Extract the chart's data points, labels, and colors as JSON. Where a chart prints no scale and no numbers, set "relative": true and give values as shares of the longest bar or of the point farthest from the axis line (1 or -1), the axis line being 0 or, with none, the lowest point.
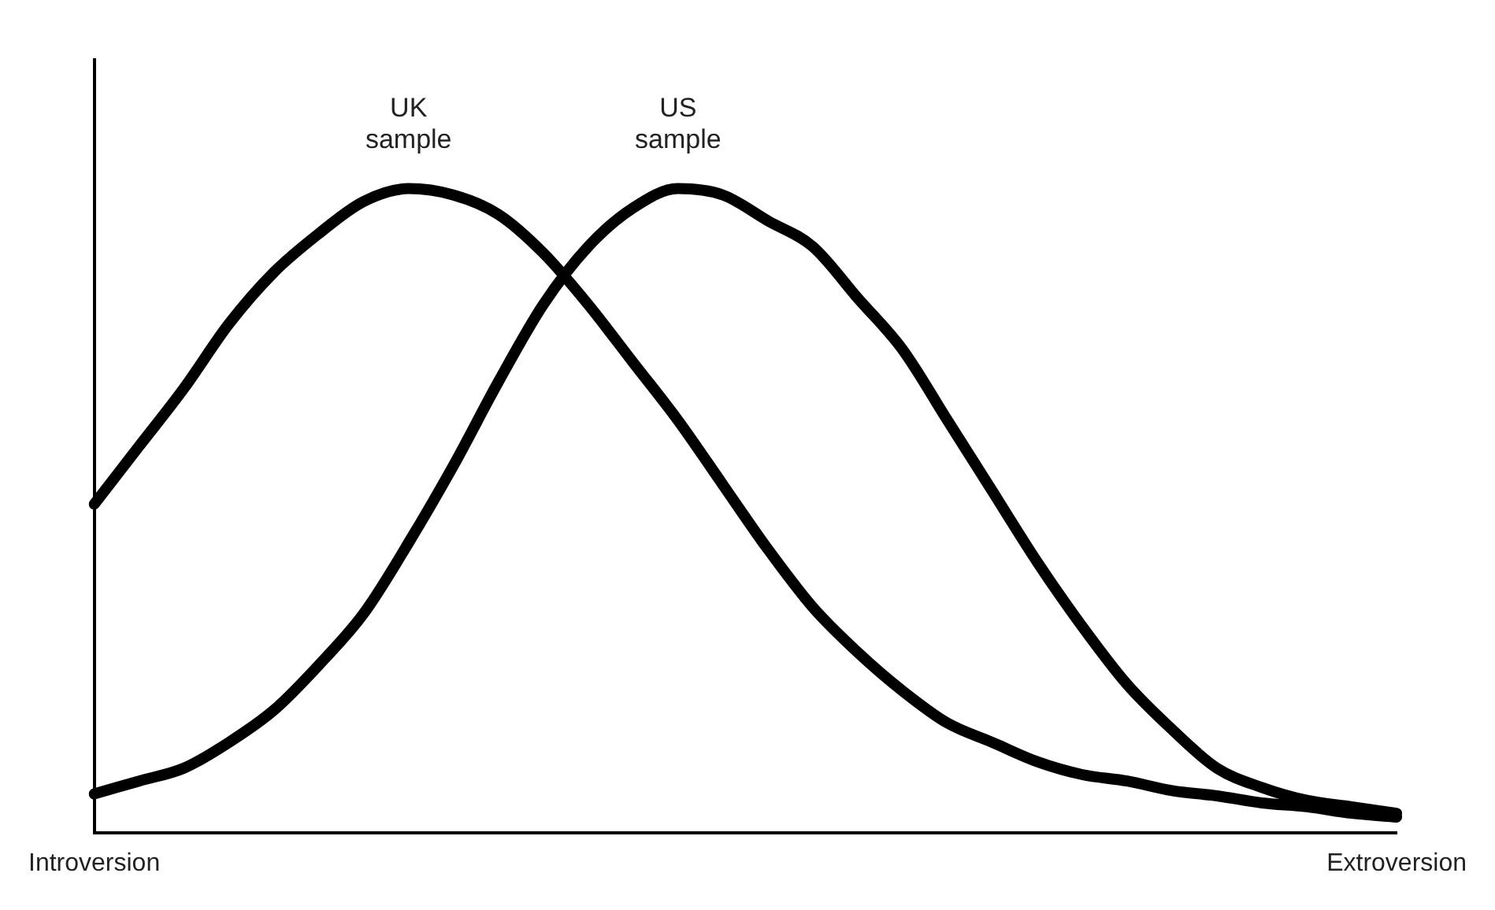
{
  "chart_data": {
    "type": "line",
    "relative": true,
    "legend": false,
    "grid": false,
    "marker": "none",
    "line_style": "solid",
    "categories": [
      "Introversion",
      null,
      null,
      null,
      null,
      null,
      null,
      null,
      null,
      null,
      null,
      null,
      null,
      null,
      null,
      null,
      null,
      null,
      null,
      null,
      null,
      null,
      null,
      null,
      null,
      null,
      null,
      null,
      null,
      "Extroversion"
    ],
    "series": [
      {
        "name": "UK sample",
        "color": "#000000",
        "values": [
          0.51,
          0.6,
          0.69,
          0.79,
          0.87,
          0.93,
          0.98,
          1.0,
          0.99,
          0.96,
          0.9,
          0.82,
          0.73,
          0.64,
          0.54,
          0.44,
          0.35,
          0.28,
          0.22,
          0.17,
          0.14,
          0.11,
          0.09,
          0.08,
          0.065,
          0.057,
          0.046,
          0.04,
          0.03,
          0.024
        ]
      },
      {
        "name": "US sample",
        "color": "#000000",
        "values": [
          0.06,
          0.08,
          0.1,
          0.14,
          0.19,
          0.26,
          0.34,
          0.45,
          0.57,
          0.7,
          0.82,
          0.91,
          0.97,
          1.0,
          0.99,
          0.95,
          0.91,
          0.83,
          0.75,
          0.64,
          0.53,
          0.42,
          0.32,
          0.23,
          0.16,
          0.1,
          0.07,
          0.05,
          0.04,
          0.03
        ]
      }
    ]
  }
}
